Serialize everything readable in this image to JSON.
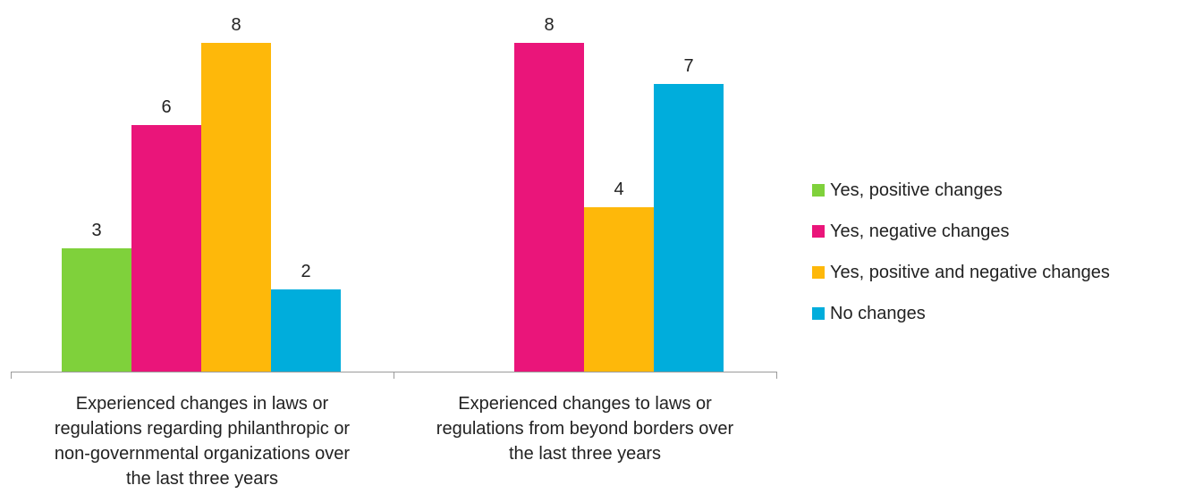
{
  "chart_data": {
    "type": "bar",
    "categories": [
      "Experienced changes in laws or regulations regarding philanthropic or non-governmental organizations over the last three years",
      "Experienced changes to laws or regulations from beyond borders over the last three years"
    ],
    "category_lines": [
      [
        "Experienced changes in laws or",
        "regulations regarding philanthropic or",
        "non-governmental organizations over",
        "the last three years"
      ],
      [
        "Experienced changes to laws or",
        "regulations from beyond borders over",
        "the last three years"
      ]
    ],
    "series": [
      {
        "name": "Yes, positive changes",
        "color": "#7fd13b",
        "values": [
          3,
          null
        ]
      },
      {
        "name": "Yes, negative changes",
        "color": "#ea157a",
        "values": [
          6,
          8
        ]
      },
      {
        "name": "Yes, positive and negative changes",
        "color": "#feb80a",
        "values": [
          8,
          4
        ]
      },
      {
        "name": "No changes",
        "color": "#00addc",
        "values": [
          2,
          7
        ]
      }
    ],
    "ylim": [
      0,
      8
    ],
    "grid": false,
    "data_labels": true,
    "legend_position": "right"
  }
}
